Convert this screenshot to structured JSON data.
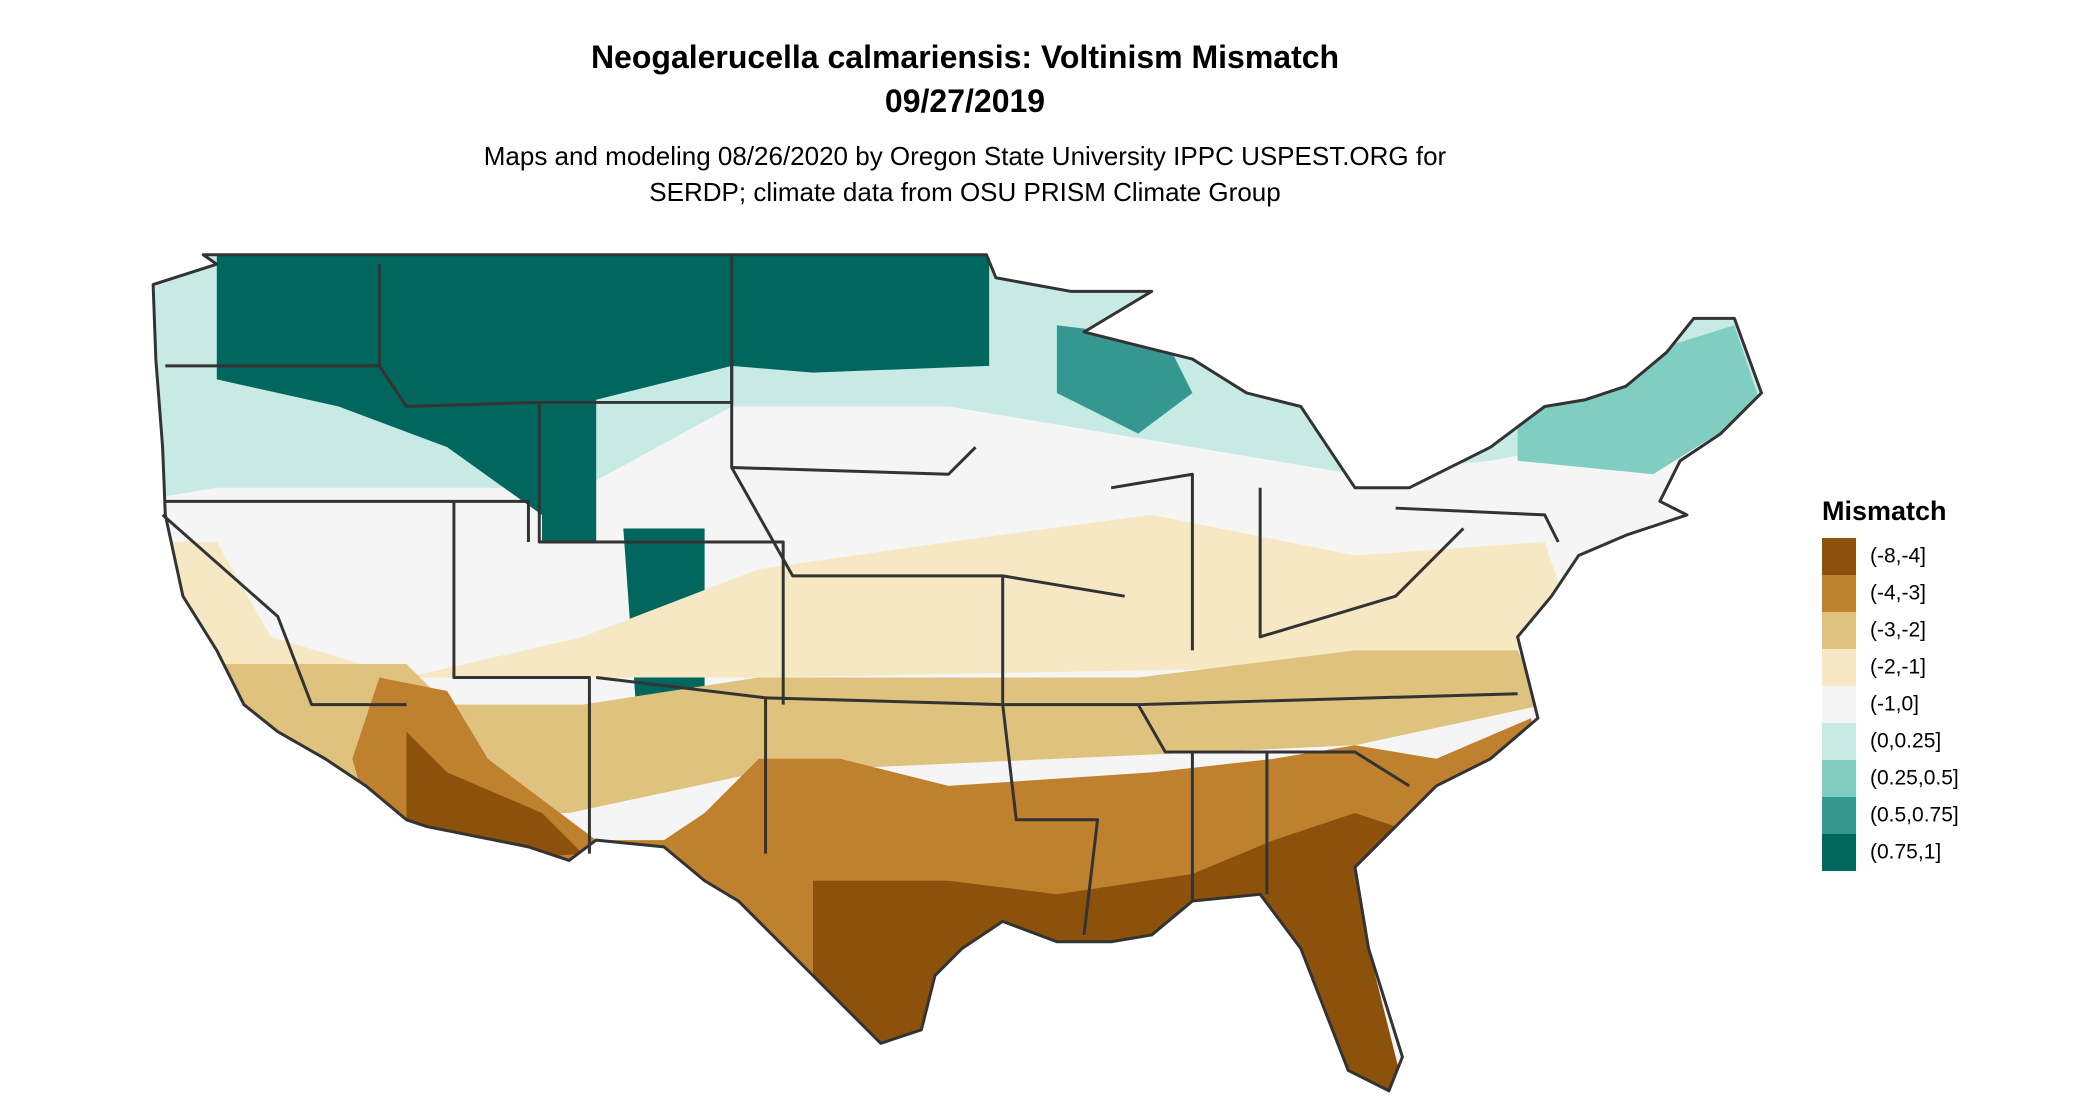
{
  "header": {
    "title": [
      "Neogalerucella calmariensis: Voltinism Mismatch",
      "09/27/2019"
    ],
    "subtitle": [
      "Maps and modeling 08/26/2020 by Oregon State University IPPC USPEST.ORG for",
      "SERDP; climate data from OSU PRISM Climate Group"
    ]
  },
  "legend": {
    "title": "Mismatch",
    "items": [
      {
        "label": "(-8,-4]",
        "color": "#8c510a"
      },
      {
        "label": "(-4,-3]",
        "color": "#bf812d"
      },
      {
        "label": "(-3,-2]",
        "color": "#dfc27d"
      },
      {
        "label": "(-2,-1]",
        "color": "#f6e8c3"
      },
      {
        "label": "(-1,0]",
        "color": "#f5f5f5"
      },
      {
        "label": "(0,0.25]",
        "color": "#c7eae5"
      },
      {
        "label": "(0.25,0.5]",
        "color": "#80cdc1"
      },
      {
        "label": "(0.5,0.75]",
        "color": "#35978f"
      },
      {
        "label": "(0.75,1]",
        "color": "#01665e"
      }
    ]
  }
}
